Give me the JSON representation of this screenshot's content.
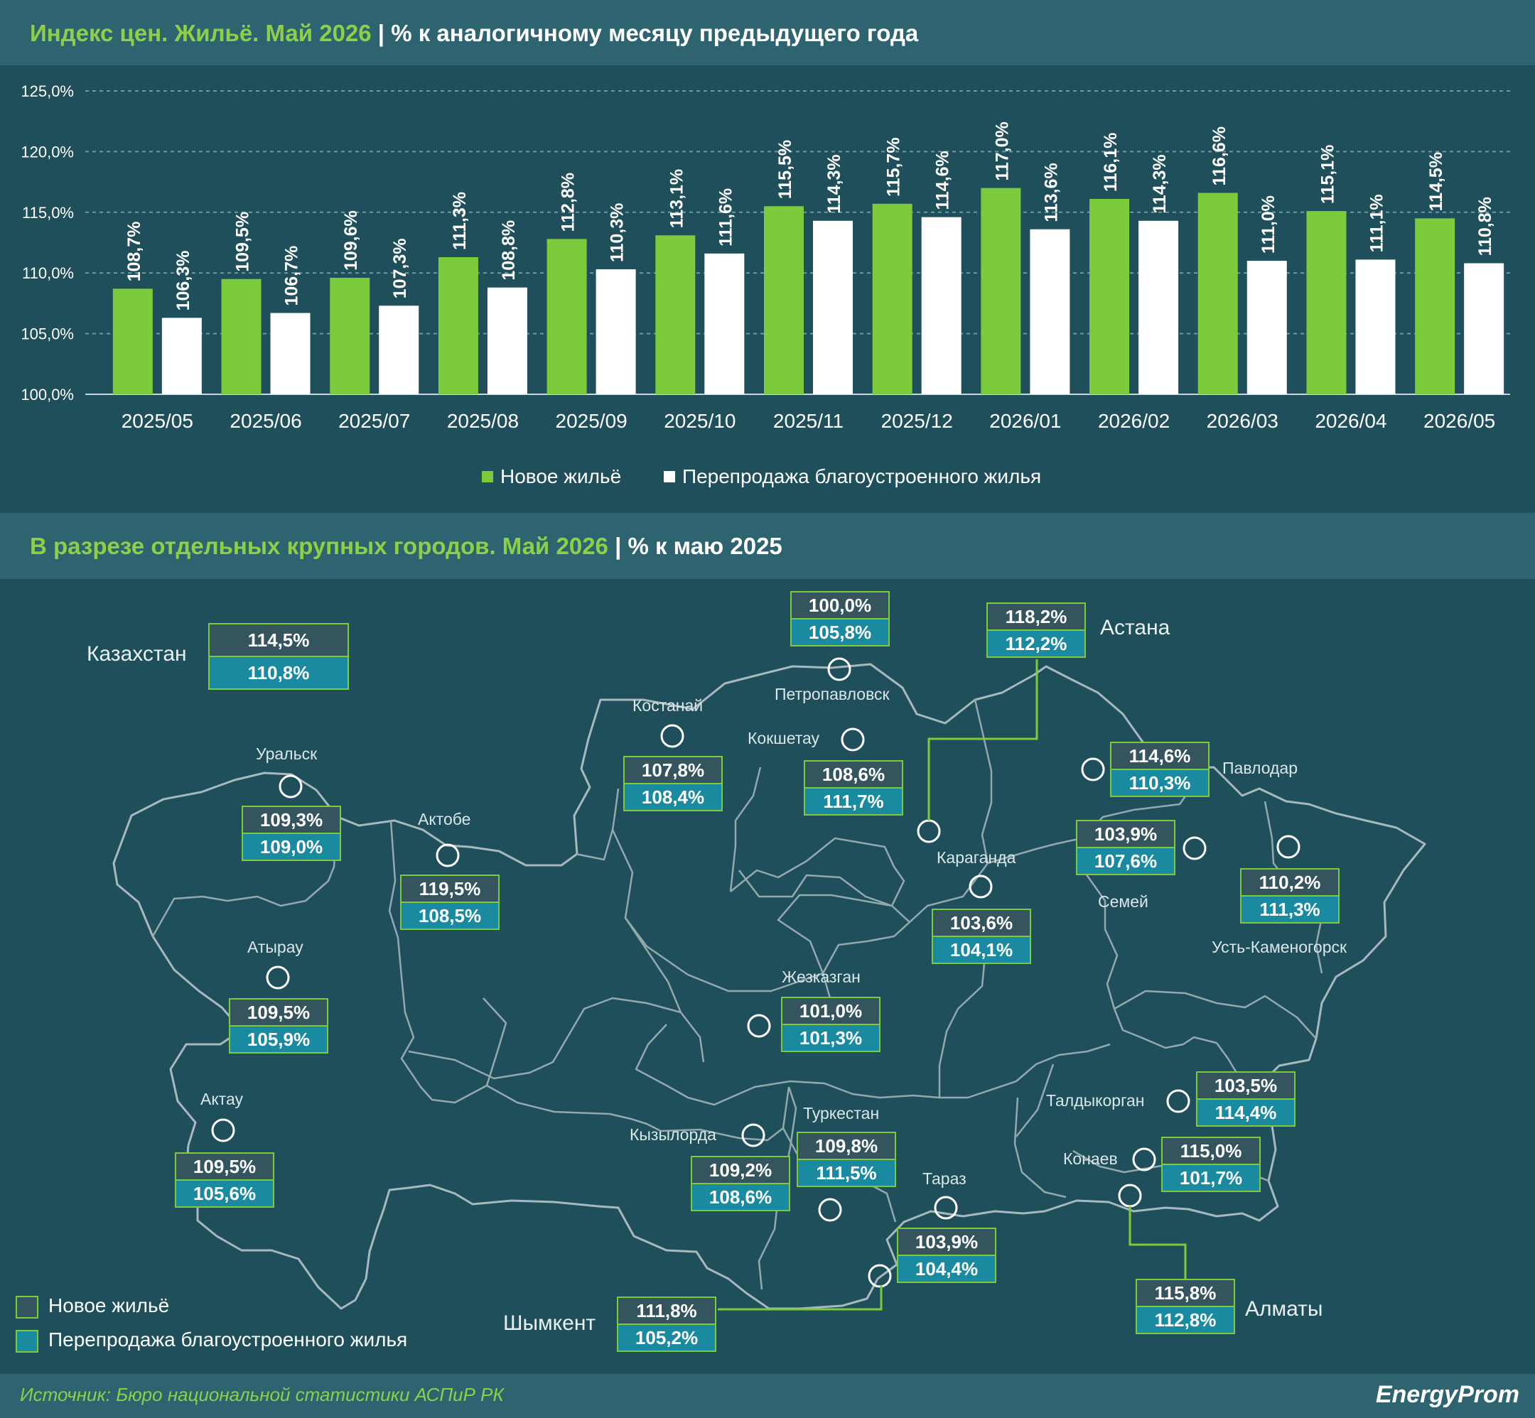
{
  "header1": {
    "accent": "Индекс цен. Жильё. Май 2026",
    "rest": " | % к аналогичному месяцу предыдущего года"
  },
  "header2": {
    "accent": "В разрезе отдельных крупных городов. Май 2026",
    "rest": " | % к маю 2025"
  },
  "colors": {
    "new": "#7ccb3c",
    "resale": "#ffffff",
    "resale_box": "#1a8aa1",
    "new_box": "#34545e",
    "background": "#1f4f5a",
    "band": "#2d6470"
  },
  "chart_data": {
    "type": "bar",
    "categories": [
      "2025/05",
      "2025/06",
      "2025/07",
      "2025/08",
      "2025/09",
      "2025/10",
      "2025/11",
      "2025/12",
      "2026/01",
      "2026/02",
      "2026/03",
      "2026/04",
      "2026/05"
    ],
    "series": [
      {
        "name": "Новое жильё",
        "values": [
          108.7,
          109.5,
          109.6,
          111.3,
          112.8,
          113.1,
          115.5,
          115.7,
          117.0,
          116.1,
          116.6,
          115.1,
          114.5
        ],
        "labels": [
          "108,7%",
          "109,5%",
          "109,6%",
          "111,3%",
          "112,8%",
          "113,1%",
          "115,5%",
          "115,7%",
          "117,0%",
          "116,1%",
          "116,6%",
          "115,1%",
          "114,5%"
        ]
      },
      {
        "name": "Перепродажа благоустроенного жилья",
        "values": [
          106.3,
          106.7,
          107.3,
          108.8,
          110.3,
          111.6,
          114.3,
          114.6,
          113.6,
          114.3,
          111.0,
          111.1,
          110.8
        ],
        "labels": [
          "106,3%",
          "106,7%",
          "107,3%",
          "108,8%",
          "110,3%",
          "111,6%",
          "114,3%",
          "114,6%",
          "113,6%",
          "114,3%",
          "111,0%",
          "111,1%",
          "110,8%"
        ]
      }
    ],
    "ylim": [
      100,
      125
    ],
    "yticks": [
      "100,0%",
      "105,0%",
      "110,0%",
      "115,0%",
      "120,0%",
      "125,0%"
    ],
    "legend": "bottom",
    "grid": true
  },
  "map": {
    "kazakhstan": {
      "name": "Казахстан",
      "new": "114,5%",
      "resale": "110,8%"
    },
    "cities": [
      {
        "name": "Петропавловск",
        "new": "100,0%",
        "resale": "105,8%"
      },
      {
        "name": "Астана",
        "new": "118,2%",
        "resale": "112,2%"
      },
      {
        "name": "Костанай",
        "new": "107,8%",
        "resale": "108,4%"
      },
      {
        "name": "Кокшетау",
        "new": "108,6%",
        "resale": "111,7%"
      },
      {
        "name": "Павлодар",
        "new": "114,6%",
        "resale": "110,3%"
      },
      {
        "name": "Уральск",
        "new": "109,3%",
        "resale": "109,0%"
      },
      {
        "name": "Актобе",
        "new": "119,5%",
        "resale": "108,5%"
      },
      {
        "name": "Семей",
        "new": "103,9%",
        "resale": "107,6%"
      },
      {
        "name": "Усть-Каменогорск",
        "new": "110,2%",
        "resale": "111,3%"
      },
      {
        "name": "Караганда",
        "new": "103,6%",
        "resale": "104,1%"
      },
      {
        "name": "Атырау",
        "new": "109,5%",
        "resale": "105,9%"
      },
      {
        "name": "Жезказган",
        "new": "101,0%",
        "resale": "101,3%"
      },
      {
        "name": "Актау",
        "new": "109,5%",
        "resale": "105,6%"
      },
      {
        "name": "Талдыкорган",
        "new": "103,5%",
        "resale": "114,4%"
      },
      {
        "name": "Туркестан",
        "new": "109,8%",
        "resale": "111,5%"
      },
      {
        "name": "Кызылорда",
        "new": "109,2%",
        "resale": "108,6%"
      },
      {
        "name": "Конаев",
        "new": "115,0%",
        "resale": "101,7%"
      },
      {
        "name": "Тараз",
        "new": "103,9%",
        "resale": "104,4%"
      },
      {
        "name": "Шымкент",
        "new": "111,8%",
        "resale": "105,2%"
      },
      {
        "name": "Алматы",
        "new": "115,8%",
        "resale": "112,8%"
      }
    ],
    "legend": {
      "new": "Новое жильё",
      "resale": "Перепродажа благоустроенного жилья"
    }
  },
  "footer": {
    "source": "Источник: Бюро национальной статистики АСПиР РК",
    "logo": "EnergyProm"
  }
}
